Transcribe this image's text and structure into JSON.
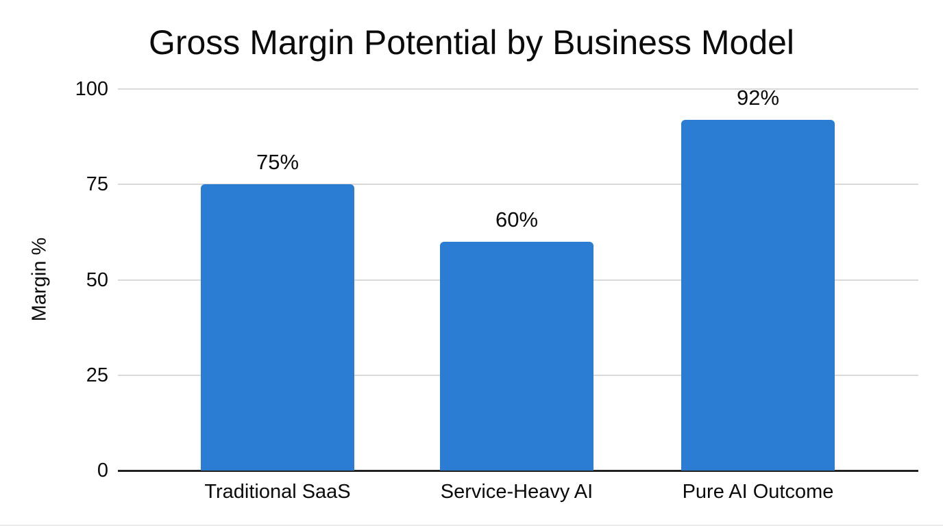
{
  "chart_data": {
    "type": "bar",
    "title": "Gross Margin Potential by Business Model",
    "xlabel": "",
    "ylabel": "Margin %",
    "categories": [
      "Traditional SaaS",
      "Service-Heavy AI",
      "Pure AI Outcome"
    ],
    "values": [
      75,
      60,
      92
    ],
    "value_labels": [
      "75%",
      "60%",
      "92%"
    ],
    "yticks": [
      0,
      25,
      50,
      75,
      100
    ],
    "ytick_labels": [
      "0",
      "25",
      "50",
      "75",
      "100"
    ],
    "ylim": [
      0,
      100
    ],
    "grid": true,
    "legend_position": "none",
    "bar_color": "#2b7cd3",
    "grid_color": "#d9d9d9",
    "axis_color": "#212121",
    "text_color": "#0b0b0b",
    "background_color": "#ffffff"
  }
}
